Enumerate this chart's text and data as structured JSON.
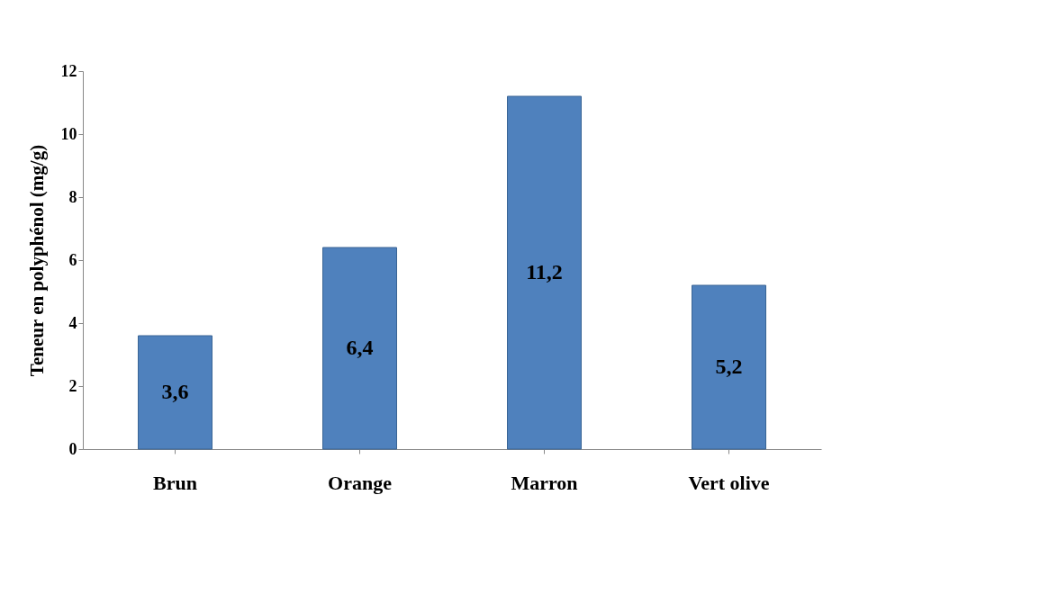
{
  "chart_data": {
    "type": "bar",
    "categories": [
      "Brun",
      "Orange",
      "Marron",
      "Vert olive"
    ],
    "values": [
      3.6,
      6.4,
      11.2,
      5.2
    ],
    "value_labels": [
      "3,6",
      "6,4",
      "11,2",
      "5,2"
    ],
    "color": "#4f81bd",
    "ylabel": "Teneur en polyphénol (mg/g)",
    "ylim": [
      0,
      12
    ],
    "yticks": [
      0,
      2,
      4,
      6,
      8,
      10,
      12
    ],
    "grid": false
  }
}
